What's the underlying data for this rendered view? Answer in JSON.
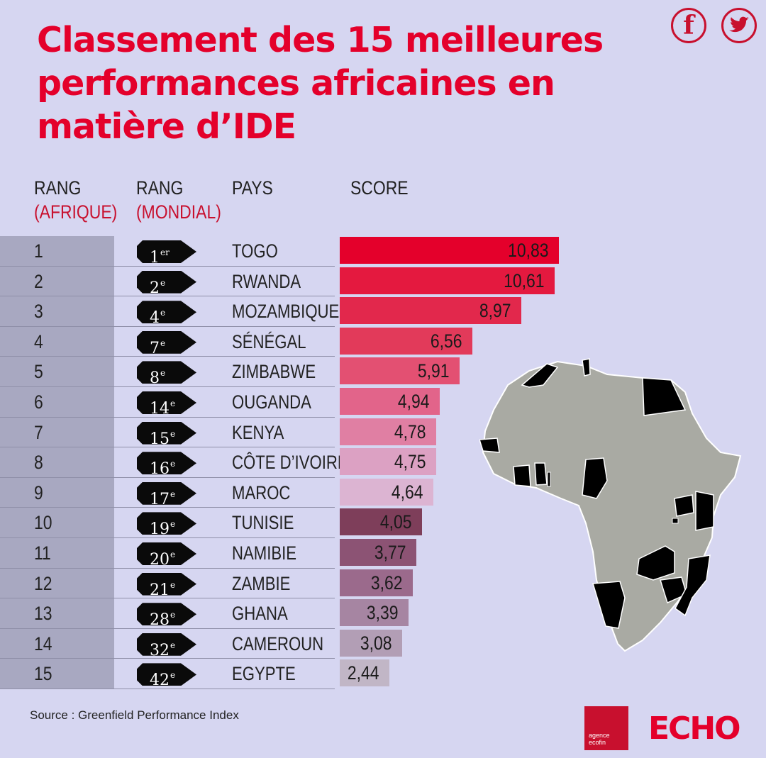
{
  "title": "Classement des 15 meilleures performances africaines en matière d’IDE",
  "social": {
    "facebook": "f",
    "twitter": "t"
  },
  "headers": {
    "rank_africa": "RANG",
    "rank_africa_sub": "(AFRIQUE)",
    "rank_world": "RANG",
    "rank_world_sub": "(MONDIAL)",
    "country": "PAYS",
    "score": "SCORE"
  },
  "colors": {
    "title": "#e4002b",
    "bars": [
      "#e4002b",
      "#e4193f",
      "#e2284c",
      "#e23a5a",
      "#e35072",
      "#e2648a",
      "#e07fa3",
      "#dca1c3",
      "#dcb4d2",
      "#7e3e5a",
      "#8c5374",
      "#9b6a8c",
      "#a685a2",
      "#b29eb5",
      "#c1b6c6"
    ]
  },
  "chart_data": {
    "type": "bar",
    "orientation": "horizontal",
    "title": "Classement des 15 meilleures performances africaines en matière d’IDE",
    "rank_africa": [
      "1",
      "2",
      "3",
      "4",
      "5",
      "6",
      "7",
      "8",
      "9",
      "10",
      "11",
      "12",
      "13",
      "14",
      "15"
    ],
    "rank_world": [
      {
        "n": "1",
        "sup": "er"
      },
      {
        "n": "2",
        "sup": "e"
      },
      {
        "n": "4",
        "sup": "e"
      },
      {
        "n": "7",
        "sup": "e"
      },
      {
        "n": "8",
        "sup": "e"
      },
      {
        "n": "14",
        "sup": "e"
      },
      {
        "n": "15",
        "sup": "e"
      },
      {
        "n": "16",
        "sup": "e"
      },
      {
        "n": "17",
        "sup": "e"
      },
      {
        "n": "19",
        "sup": "e"
      },
      {
        "n": "20",
        "sup": "e"
      },
      {
        "n": "21",
        "sup": "e"
      },
      {
        "n": "28",
        "sup": "e"
      },
      {
        "n": "32",
        "sup": "e"
      },
      {
        "n": "42",
        "sup": "e"
      }
    ],
    "categories": [
      "TOGO",
      "RWANDA",
      "MOZAMBIQUE",
      "SÉNÉGAL",
      "ZIMBABWE",
      "OUGANDA",
      "KENYA",
      "CÔTE D’IVOIRE",
      "MAROC",
      "TUNISIE",
      "NAMIBIE",
      "ZAMBIE",
      "GHANA",
      "CAMEROUN",
      "EGYPTE"
    ],
    "values": [
      10.83,
      10.61,
      8.97,
      6.56,
      5.91,
      4.94,
      4.78,
      4.75,
      4.64,
      4.05,
      3.77,
      3.62,
      3.39,
      3.08,
      2.44
    ],
    "value_labels": [
      "10,83",
      "10,61",
      "8,97",
      "6,56",
      "5,91",
      "4,94",
      "4,78",
      "4,75",
      "4,64",
      "4,05",
      "3,77",
      "3,62",
      "3,39",
      "3,08",
      "2,44"
    ]
  },
  "source": "Source : Greenfield Performance Index",
  "logos": {
    "ecofin": "agence ecofin",
    "echo": "ECHO"
  }
}
